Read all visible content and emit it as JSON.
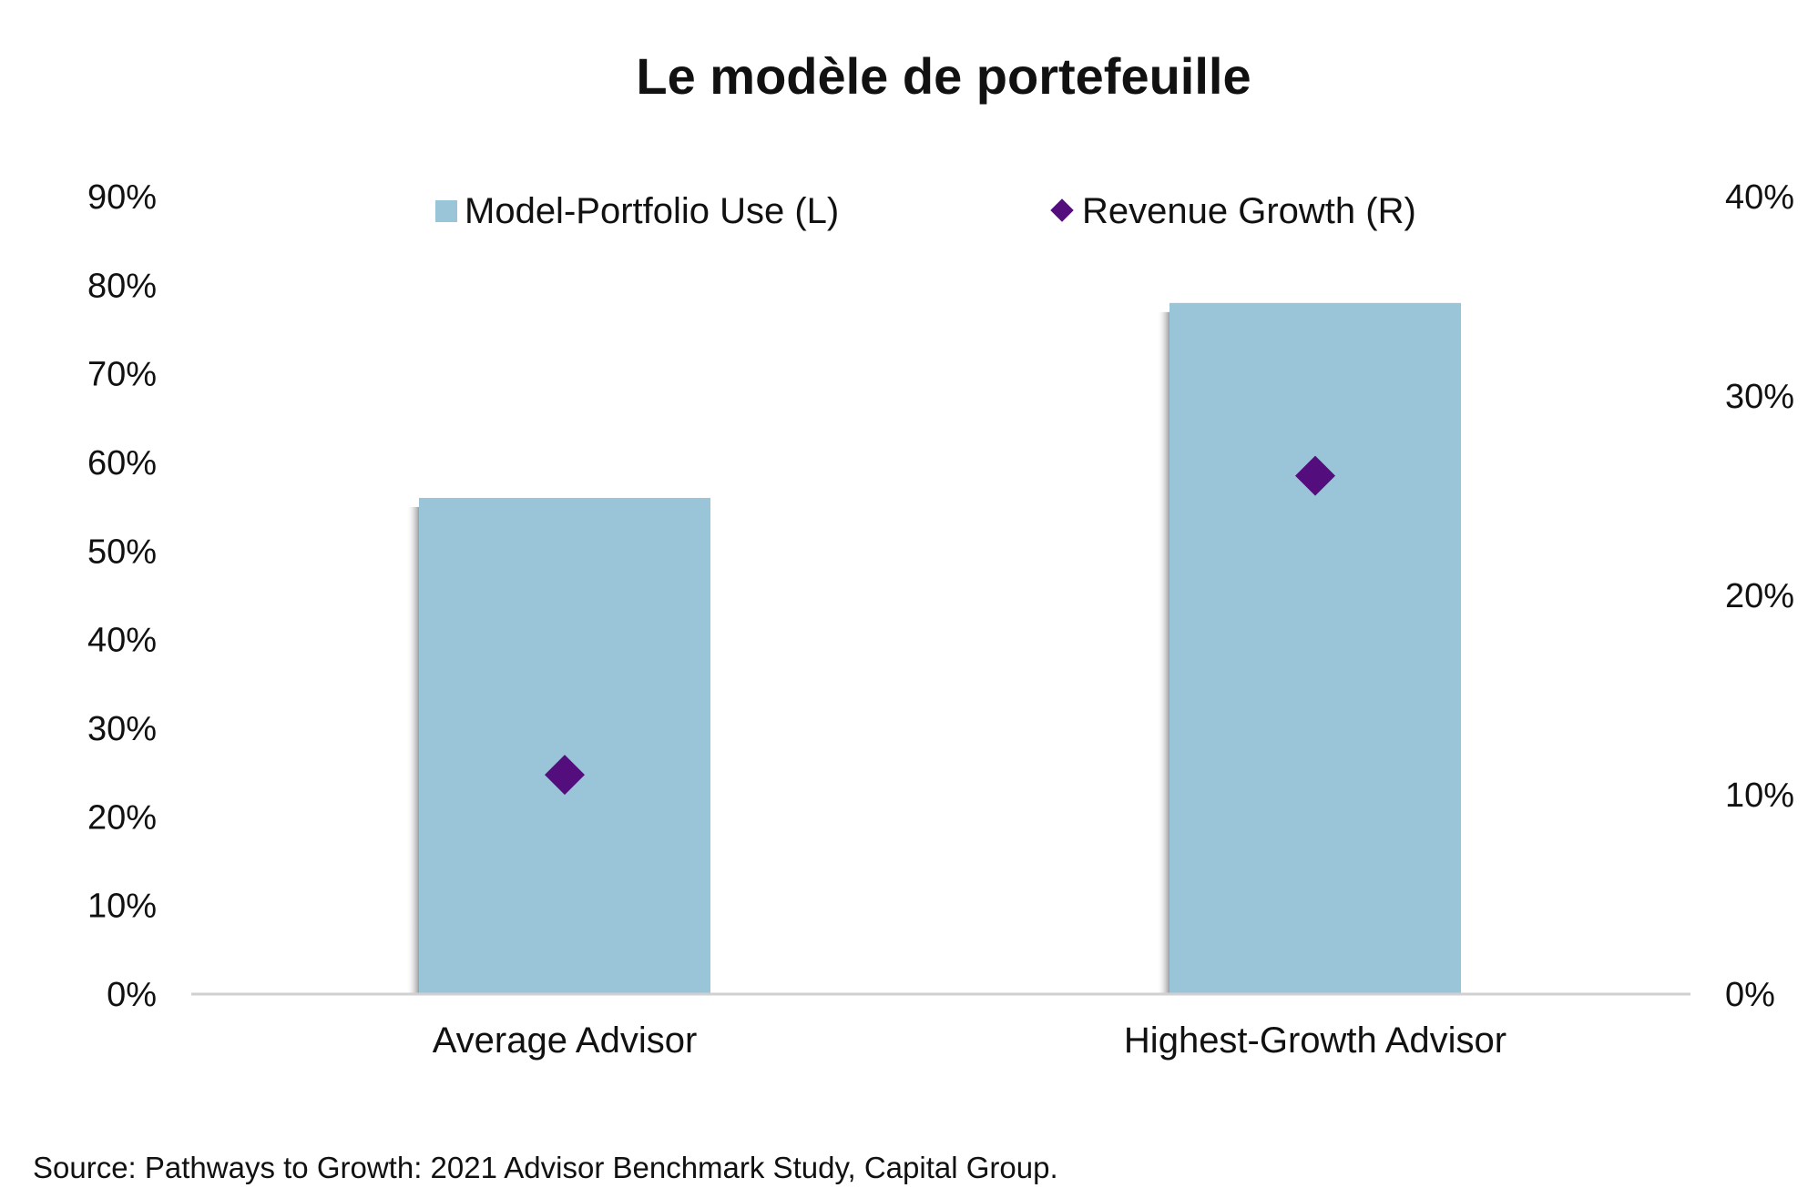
{
  "chart_data": {
    "type": "bar",
    "title": "Le modèle de portefeuille",
    "categories": [
      "Average Advisor",
      "Highest-Growth Advisor"
    ],
    "series": [
      {
        "name": "Model-Portfolio Use (L)",
        "kind": "bar",
        "axis": "left",
        "color": "#9AC5D8",
        "values": [
          0.56,
          0.78
        ]
      },
      {
        "name": "Revenue Growth (R)",
        "kind": "diamond-marker",
        "axis": "right",
        "color": "#540D7C",
        "values": [
          0.11,
          0.26
        ]
      }
    ],
    "left_axis": {
      "ylim": [
        0,
        0.9
      ],
      "tick_labels": [
        "0%",
        "10%",
        "20%",
        "30%",
        "40%",
        "50%",
        "60%",
        "70%",
        "80%",
        "90%"
      ]
    },
    "right_axis": {
      "ylim": [
        0,
        0.4
      ],
      "tick_labels": [
        "0%",
        "10%",
        "20%",
        "30%",
        "40%"
      ]
    },
    "xlabel": "",
    "ylabel": "",
    "grid": false,
    "legend_position": "top-center",
    "source": "Source: Pathways to Growth: 2021 Advisor Benchmark Study, Capital Group."
  }
}
